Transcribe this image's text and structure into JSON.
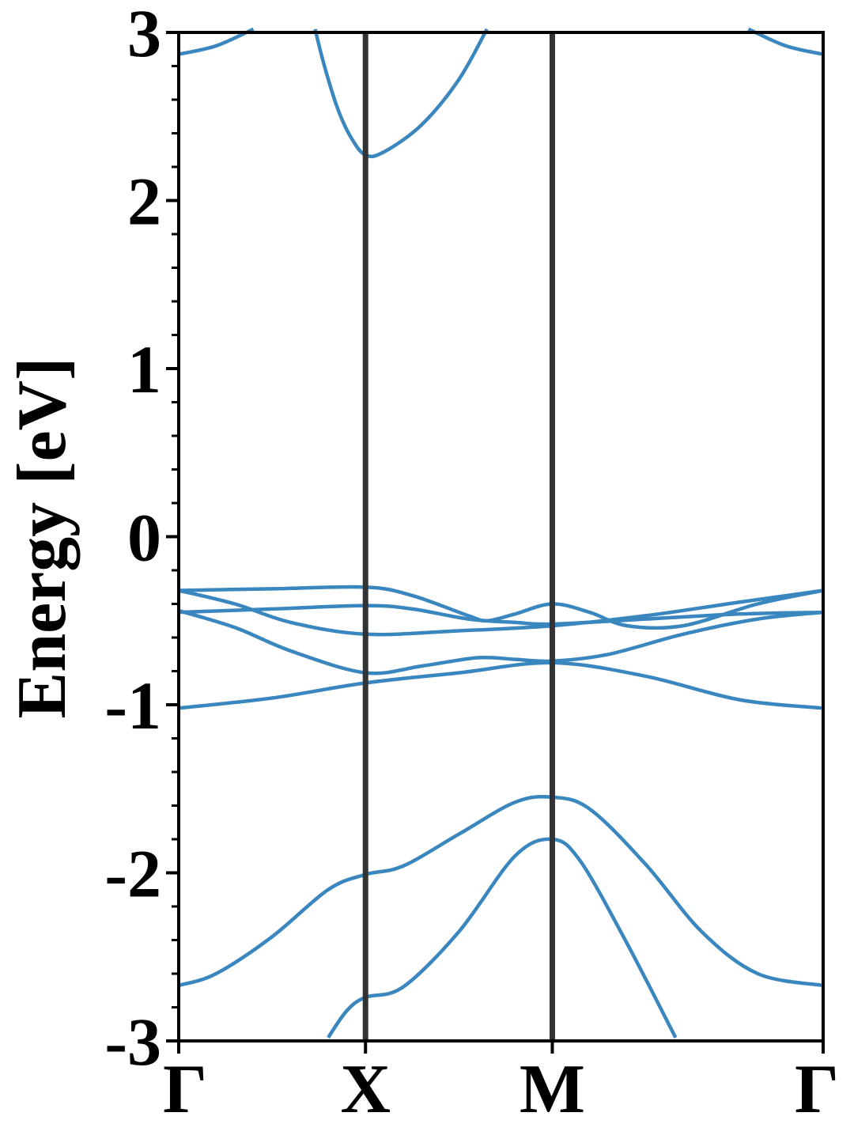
{
  "chart_data": {
    "type": "line",
    "title": "",
    "xlabel": "",
    "ylabel": "Energy [eV]",
    "ylim": [
      -3,
      3
    ],
    "xlim": [
      0,
      3.45
    ],
    "grid": false,
    "legend": "none",
    "yticks": [
      -3,
      -2,
      -1,
      0,
      1,
      2,
      3
    ],
    "ytick_labels": [
      "-3",
      "-2",
      "-1",
      "0",
      "1",
      "2",
      "3"
    ],
    "ytick_minor_step": 0.2,
    "kpoints": [
      {
        "label": "Γ",
        "x": 0
      },
      {
        "label": "X",
        "x": 1.0
      },
      {
        "label": "M",
        "x": 2.0
      },
      {
        "label": "Γ",
        "x": 3.45
      }
    ],
    "colors": {
      "bands": "#3a86bf",
      "kpath_lines": "#333333",
      "axes": "#000000"
    },
    "series": [
      {
        "values": [
          [
            0,
            2.87
          ],
          [
            0.2,
            2.92
          ],
          [
            0.4,
            3.02
          ]
        ]
      },
      {
        "values": [
          [
            3.05,
            3.02
          ],
          [
            3.25,
            2.92
          ],
          [
            3.45,
            2.87
          ]
        ]
      },
      {
        "values": [
          [
            0.73,
            3.02
          ],
          [
            0.78,
            2.8
          ],
          [
            0.85,
            2.55
          ],
          [
            0.92,
            2.38
          ],
          [
            1.0,
            2.27
          ],
          [
            1.1,
            2.29
          ],
          [
            1.3,
            2.45
          ],
          [
            1.5,
            2.72
          ],
          [
            1.65,
            3.02
          ]
        ]
      },
      {
        "values": [
          [
            0,
            -0.32
          ],
          [
            0.5,
            -0.31
          ],
          [
            1.0,
            -0.3
          ],
          [
            1.25,
            -0.35
          ],
          [
            1.55,
            -0.47
          ],
          [
            1.65,
            -0.5
          ],
          [
            1.8,
            -0.46
          ],
          [
            2.0,
            -0.4
          ],
          [
            2.2,
            -0.45
          ],
          [
            2.4,
            -0.53
          ],
          [
            2.7,
            -0.53
          ],
          [
            3.1,
            -0.4
          ],
          [
            3.45,
            -0.32
          ]
        ]
      },
      {
        "values": [
          [
            0,
            -0.32
          ],
          [
            0.3,
            -0.4
          ],
          [
            0.6,
            -0.51
          ],
          [
            1.0,
            -0.58
          ],
          [
            1.5,
            -0.56
          ],
          [
            2.0,
            -0.53
          ],
          [
            2.5,
            -0.47
          ],
          [
            3.0,
            -0.39
          ],
          [
            3.45,
            -0.32
          ]
        ]
      },
      {
        "values": [
          [
            0,
            -0.45
          ],
          [
            0.5,
            -0.43
          ],
          [
            1.0,
            -0.41
          ],
          [
            1.25,
            -0.43
          ],
          [
            1.55,
            -0.49
          ],
          [
            1.8,
            -0.51
          ],
          [
            2.0,
            -0.52
          ],
          [
            2.5,
            -0.49
          ],
          [
            3.0,
            -0.46
          ],
          [
            3.45,
            -0.45
          ]
        ]
      },
      {
        "values": [
          [
            0,
            -0.44
          ],
          [
            0.3,
            -0.54
          ],
          [
            0.6,
            -0.68
          ],
          [
            1.0,
            -0.81
          ],
          [
            1.3,
            -0.77
          ],
          [
            1.6,
            -0.72
          ],
          [
            1.8,
            -0.73
          ],
          [
            2.0,
            -0.74
          ],
          [
            2.3,
            -0.7
          ],
          [
            2.7,
            -0.58
          ],
          [
            3.1,
            -0.49
          ],
          [
            3.45,
            -0.45
          ]
        ]
      },
      {
        "values": [
          [
            0,
            -1.02
          ],
          [
            0.5,
            -0.96
          ],
          [
            1.0,
            -0.87
          ],
          [
            1.5,
            -0.81
          ],
          [
            2.0,
            -0.75
          ],
          [
            2.5,
            -0.83
          ],
          [
            3.0,
            -0.97
          ],
          [
            3.45,
            -1.02
          ]
        ]
      },
      {
        "values": [
          [
            0,
            -2.67
          ],
          [
            0.2,
            -2.6
          ],
          [
            0.5,
            -2.38
          ],
          [
            0.8,
            -2.1
          ],
          [
            1.0,
            -2.01
          ],
          [
            1.2,
            -1.96
          ],
          [
            1.5,
            -1.77
          ],
          [
            1.8,
            -1.58
          ],
          [
            2.0,
            -1.55
          ],
          [
            2.2,
            -1.62
          ],
          [
            2.5,
            -1.95
          ],
          [
            2.8,
            -2.35
          ],
          [
            3.1,
            -2.6
          ],
          [
            3.45,
            -2.67
          ]
        ]
      },
      {
        "values": [
          [
            0.8,
            -2.98
          ],
          [
            0.9,
            -2.82
          ],
          [
            1.0,
            -2.74
          ],
          [
            1.2,
            -2.68
          ],
          [
            1.5,
            -2.35
          ],
          [
            1.8,
            -1.9
          ],
          [
            2.0,
            -1.8
          ],
          [
            2.15,
            -1.93
          ],
          [
            2.4,
            -2.42
          ],
          [
            2.66,
            -2.98
          ]
        ]
      }
    ]
  }
}
